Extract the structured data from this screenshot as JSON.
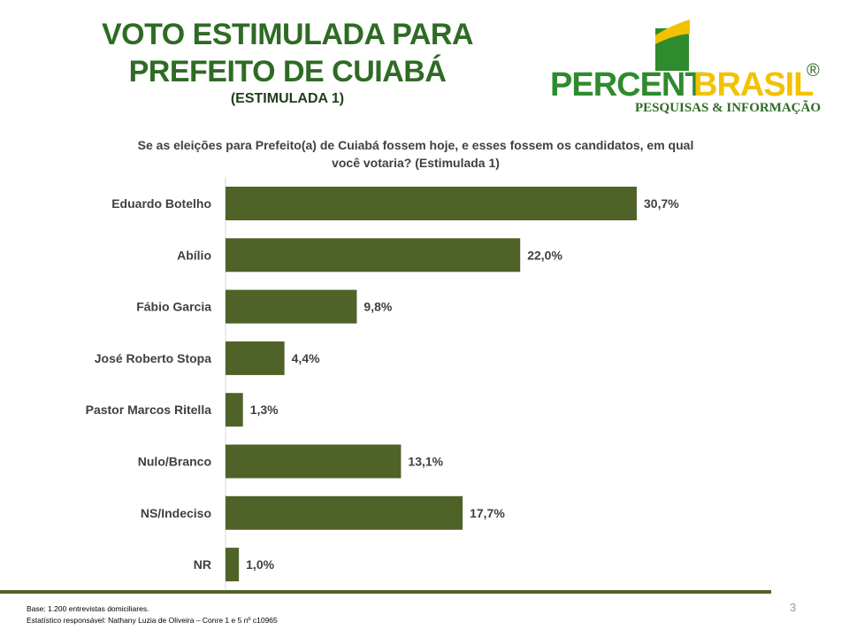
{
  "header": {
    "title_line1": "VOTO ESTIMULADA PARA",
    "title_line2": "PREFEITO DE CUIABÁ",
    "subtitle": "(ESTIMULADA 1)"
  },
  "logo": {
    "text_percent": "PERCENT",
    "text_brasil": "BRASIL",
    "registered": "®",
    "tagline": "PESQUISAS & INFORMAÇÃO",
    "colors": {
      "green": "#2e8b2e",
      "yellow": "#f2c200",
      "tagline": "#2e6b24"
    }
  },
  "question": {
    "line1": "Se as eleições para Prefeito(a) de Cuiabá fossem hoje, e esses fossem os candidatos, em qual",
    "line2": "você votaria? (Estimulada 1)"
  },
  "chart_data": {
    "type": "bar",
    "orientation": "horizontal",
    "categories": [
      "Eduardo Botelho",
      "Abílio",
      "Fábio Garcia",
      "José Roberto Stopa",
      "Pastor Marcos Ritella",
      "Nulo/Branco",
      "NS/Indeciso",
      "NR"
    ],
    "values": [
      30.7,
      22.0,
      9.8,
      4.4,
      1.3,
      13.1,
      17.7,
      1.0
    ],
    "value_labels": [
      "30,7%",
      "22,0%",
      "9,8%",
      "4,4%",
      "1,3%",
      "13,1%",
      "17,7%",
      "1,0%"
    ],
    "xlim": [
      0,
      30.7
    ],
    "bar_color": "#4f6228",
    "grid": false,
    "legend": "none"
  },
  "footer": {
    "base": "Base: 1.200 entrevistas domiciliares.",
    "statistician": "Estatístico responsável: Nathany Luzia de Oliveira – Conre 1 e 5 nº c10965",
    "page_number": "3"
  }
}
